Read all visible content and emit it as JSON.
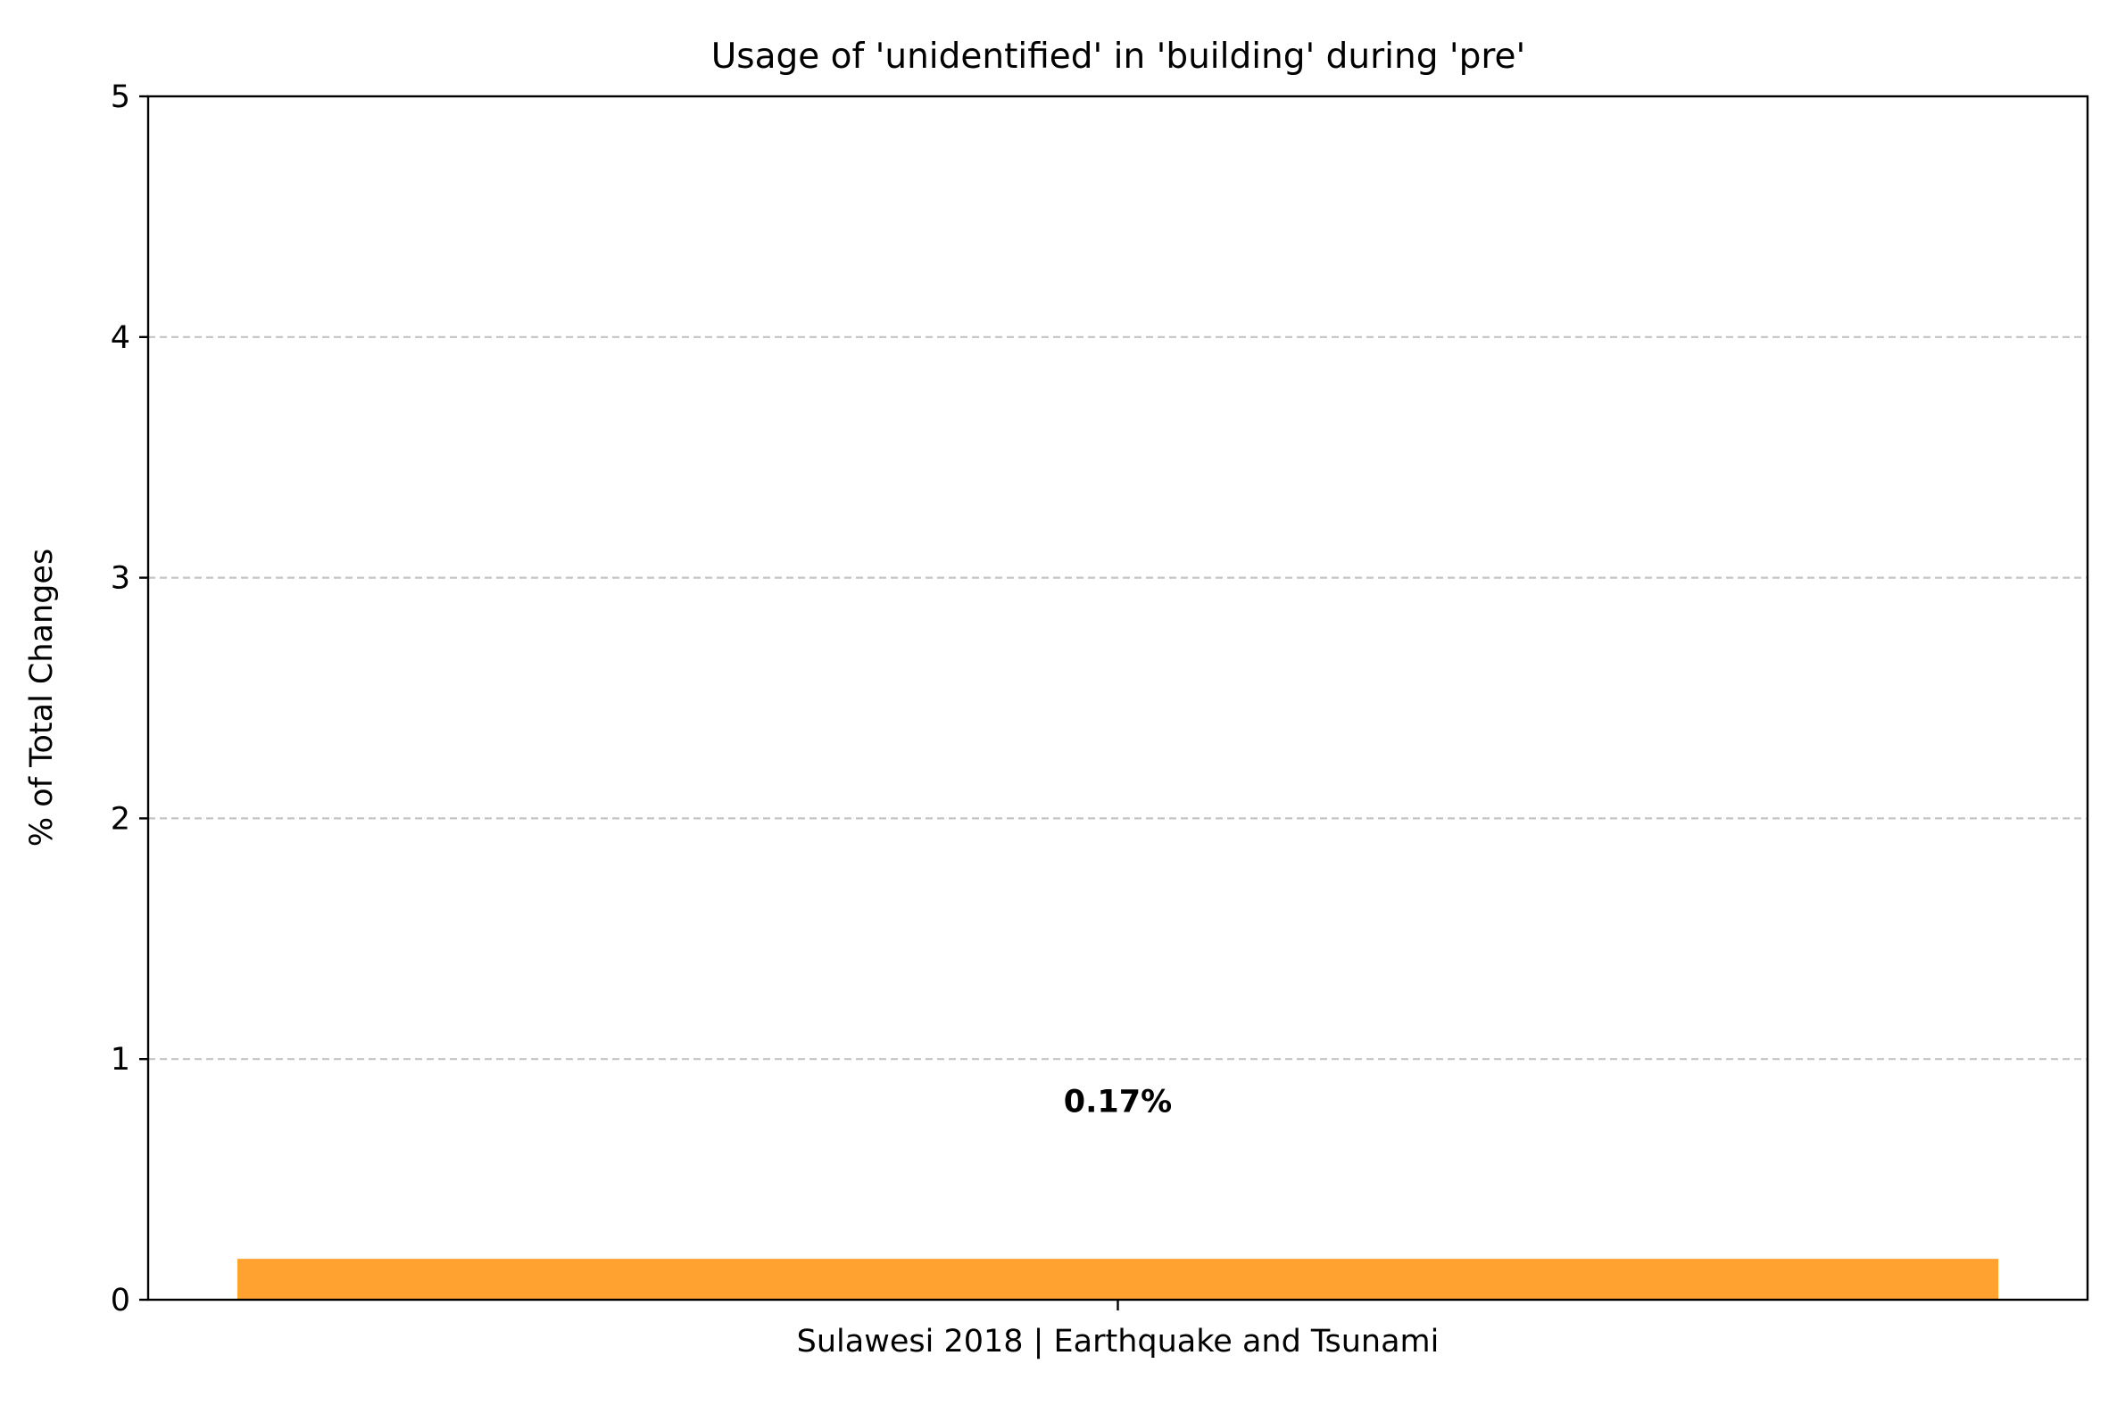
{
  "chart_data": {
    "type": "bar",
    "title": "Usage of 'unidentified' in 'building' during 'pre'",
    "xlabel": "",
    "ylabel": "% of Total Changes",
    "categories": [
      "Sulawesi 2018 | Earthquake and Tsunami"
    ],
    "values": [
      0.17
    ],
    "data_labels": [
      "0.17%"
    ],
    "ylim": [
      0,
      5
    ],
    "yticks": [
      "0",
      "1",
      "2",
      "3",
      "4",
      "5"
    ],
    "grid": "horizontal dashed",
    "bar_color": "#FFA230"
  }
}
